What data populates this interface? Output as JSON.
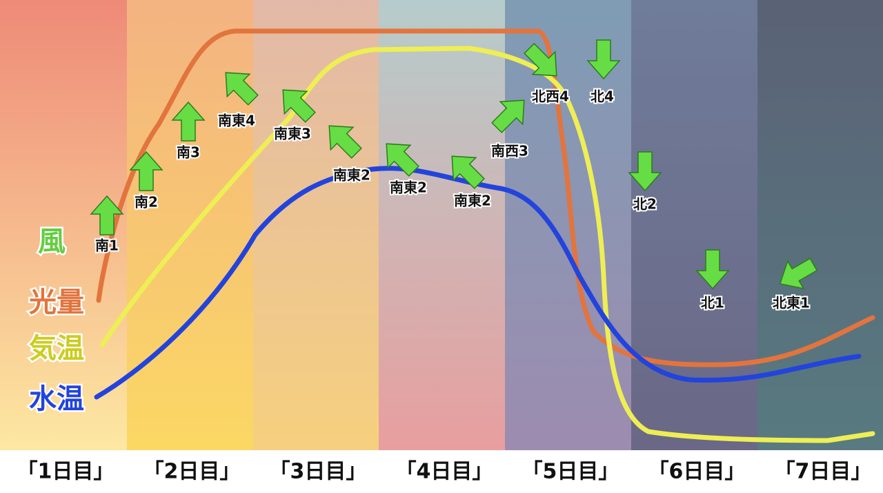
{
  "legend": {
    "wind": "風",
    "light": "光量",
    "air_temp": "気温",
    "water_temp": "水温"
  },
  "wind": [
    "南1",
    "南2",
    "南3",
    "南東4",
    "南東3",
    "南東2",
    "南東2",
    "南東2",
    "南西3",
    "北西4",
    "北4",
    "北2",
    "北1",
    "北東1"
  ],
  "days": [
    "「1日目」",
    "「2日目」",
    "「3日目」",
    "「4日目」",
    "「5日目」",
    "「6日目」",
    "「7日目」"
  ]
}
